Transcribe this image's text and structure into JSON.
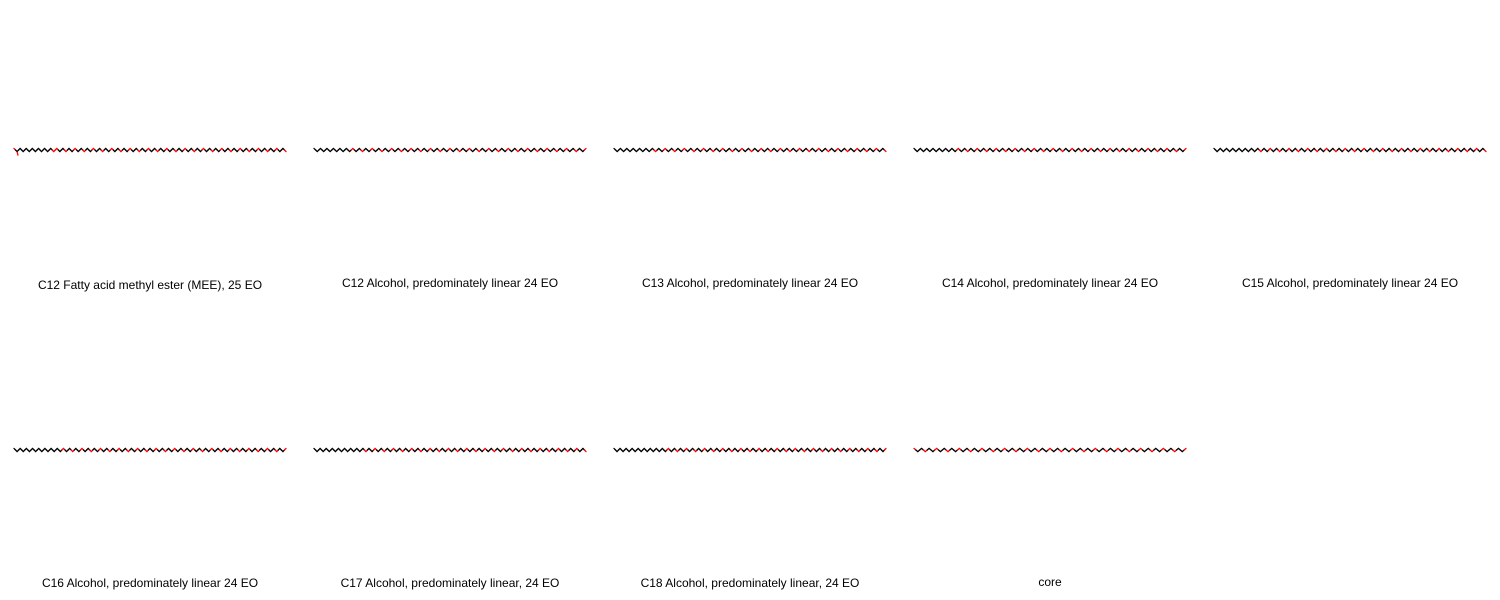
{
  "colors": {
    "carbon_bond": "#000000",
    "oxygen": "#ff0000",
    "background": "#ffffff"
  },
  "molecules": [
    {
      "label": "C12 Fatty acid methyl ester (MEE), 25 EO",
      "alkyl_carbons": 12,
      "eo_units": 25,
      "ester": true
    },
    {
      "label": "C12 Alcohol, predominately linear 24 EO",
      "alkyl_carbons": 12,
      "eo_units": 24,
      "ester": false
    },
    {
      "label": "C13 Alcohol, predominately linear 24 EO",
      "alkyl_carbons": 13,
      "eo_units": 24,
      "ester": false
    },
    {
      "label": "C14 Alcohol, predominately linear 24 EO",
      "alkyl_carbons": 14,
      "eo_units": 24,
      "ester": false
    },
    {
      "label": "C15 Alcohol, predominately linear 24 EO",
      "alkyl_carbons": 15,
      "eo_units": 24,
      "ester": false
    },
    {
      "label": "C16 Alcohol, predominately linear 24 EO",
      "alkyl_carbons": 16,
      "eo_units": 24,
      "ester": false
    },
    {
      "label": "C17 Alcohol, predominately linear, 24 EO",
      "alkyl_carbons": 17,
      "eo_units": 24,
      "ester": false
    },
    {
      "label": "C18 Alcohol, predominately linear, 24 EO",
      "alkyl_carbons": 18,
      "eo_units": 24,
      "ester": false
    },
    {
      "label": "core",
      "alkyl_carbons": 0,
      "eo_units": 24,
      "ester": false
    }
  ]
}
